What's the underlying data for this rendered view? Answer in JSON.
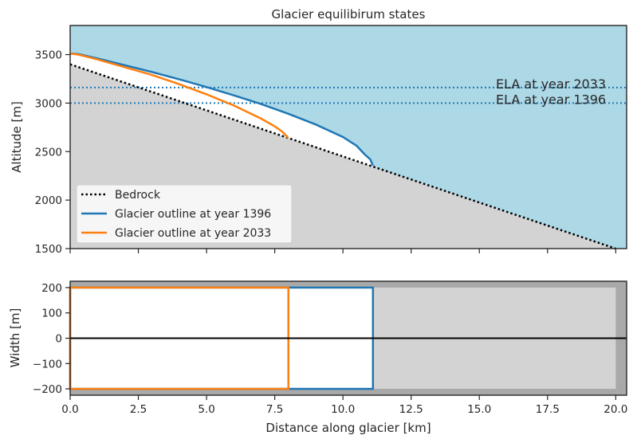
{
  "chart_data": [
    {
      "type": "line",
      "title": "Glacier equilibirum states",
      "xlabel": "",
      "ylabel": "Altitude [m]",
      "xlim": [
        0,
        20.4
      ],
      "ylim": [
        1500,
        3800
      ],
      "yticks": [
        1500,
        2000,
        2500,
        3000,
        3500
      ],
      "yticklabels": [
        "1500",
        "2000",
        "2500",
        "3000",
        "3500"
      ],
      "xticks": [
        0,
        2.5,
        5,
        7.5,
        10,
        12.5,
        15,
        17.5,
        20
      ],
      "background_colors": {
        "sky": "#add8e6",
        "bedrock_fill": "#d3d3d3"
      },
      "bedrock": {
        "x": [
          0,
          20
        ],
        "y": [
          3400,
          1500
        ]
      },
      "series": [
        {
          "name": "Bedrock",
          "color": "#000000",
          "style": "dotted",
          "x": [
            0,
            20
          ],
          "y": [
            3400,
            1500
          ]
        },
        {
          "name": "Glacier outline at year 1396",
          "color": "#1f77b4",
          "style": "solid",
          "x": [
            0,
            0.3,
            1,
            2,
            3,
            4,
            5,
            6,
            7,
            8,
            9,
            10,
            10.5,
            10.8,
            11.0,
            11.1
          ],
          "y": [
            3510,
            3505,
            3460,
            3390,
            3320,
            3245,
            3165,
            3080,
            2990,
            2890,
            2780,
            2650,
            2560,
            2470,
            2420,
            2355
          ]
        },
        {
          "name": "Glacier outline at year 2033",
          "color": "#ff7f0e",
          "style": "solid",
          "x": [
            0,
            0.3,
            1,
            2,
            3,
            4,
            5,
            6,
            7,
            7.5,
            7.8,
            7.9,
            8.0
          ],
          "y": [
            3510,
            3500,
            3450,
            3370,
            3290,
            3195,
            3090,
            2975,
            2840,
            2760,
            2700,
            2670,
            2640
          ]
        }
      ],
      "hlines": [
        {
          "label": "ELA at year 2033",
          "y": 3160,
          "color": "#1f77b4"
        },
        {
          "label": "ELA at year 1396",
          "y": 3000,
          "color": "#1f77b4"
        }
      ],
      "legend": "lower-left"
    },
    {
      "type": "line",
      "xlabel": "Distance along glacier [km]",
      "ylabel": "Width [m]",
      "xlim": [
        0,
        20.4
      ],
      "ylim": [
        -225,
        225
      ],
      "xticks": [
        0,
        2.5,
        5,
        7.5,
        10,
        12.5,
        15,
        17.5,
        20
      ],
      "xticklabels": [
        "0.0",
        "2.5",
        "5.0",
        "7.5",
        "10.0",
        "12.5",
        "15.0",
        "17.5",
        "20.0"
      ],
      "yticks": [
        -200,
        -100,
        0,
        100,
        200
      ],
      "yticklabels": [
        "−200",
        "−100",
        "0",
        "100",
        "200"
      ],
      "background_colors": {
        "outer": "#a9a9a9",
        "valley": "#d3d3d3"
      },
      "valley": {
        "x": [
          0,
          20
        ],
        "halfwidth": 200
      },
      "series": [
        {
          "name": "Glacier outline at year 1396",
          "color": "#1f77b4",
          "x": [
            0,
            11.1
          ],
          "halfwidth": 200
        },
        {
          "name": "Glacier outline at year 2033",
          "color": "#ff7f0e",
          "x": [
            0,
            8.0
          ],
          "halfwidth": 200
        }
      ],
      "centerline": 0
    }
  ]
}
